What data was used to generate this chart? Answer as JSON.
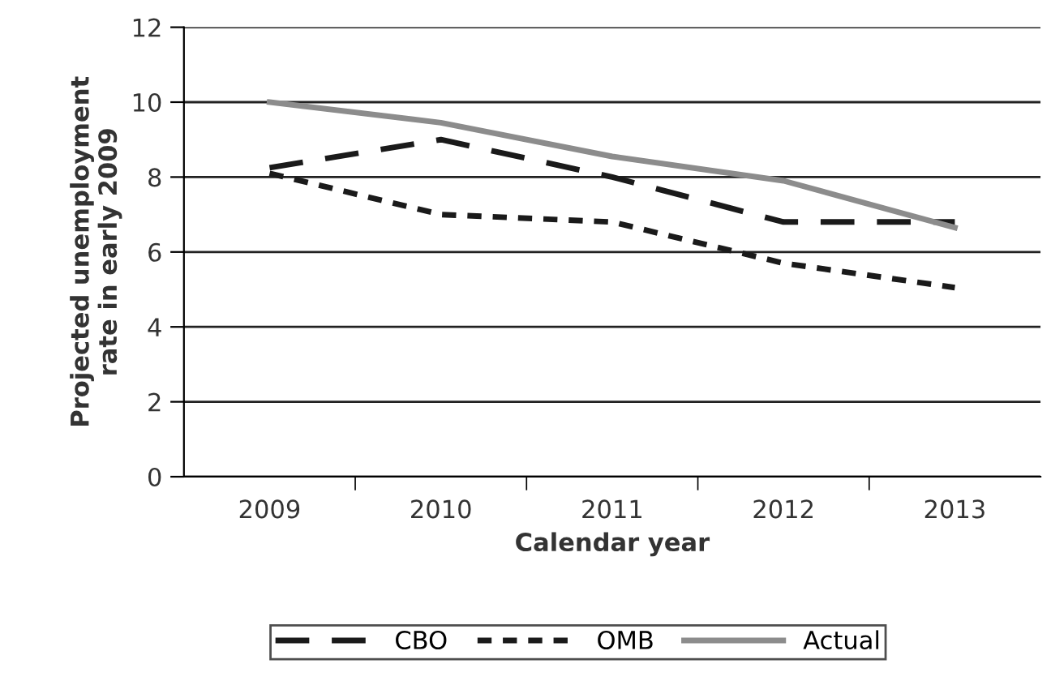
{
  "chart_data": {
    "type": "line",
    "xlabel": "Calendar year",
    "ylabel": "Projected unemployment\nrate in early 2009",
    "categories": [
      "2009",
      "2010",
      "2011",
      "2012",
      "2013"
    ],
    "series": [
      {
        "name": "CBO",
        "color": "#1a1a1a",
        "line_style": "dashed",
        "values": [
          8.25,
          9.0,
          8.0,
          6.8,
          6.8
        ]
      },
      {
        "name": "OMB",
        "color": "#1a1a1a",
        "line_style": "dotted",
        "values": [
          8.1,
          7.0,
          6.8,
          5.7,
          5.05
        ]
      },
      {
        "name": "Actual",
        "color": "#8c8c8c",
        "line_style": "solid",
        "values": [
          10.0,
          9.45,
          8.55,
          7.9,
          6.65
        ]
      }
    ],
    "ylim": [
      0,
      12
    ],
    "yticks": [
      0,
      2,
      4,
      6,
      8,
      10,
      12
    ],
    "grid": "y",
    "legend": "bottom",
    "marker": "none"
  }
}
